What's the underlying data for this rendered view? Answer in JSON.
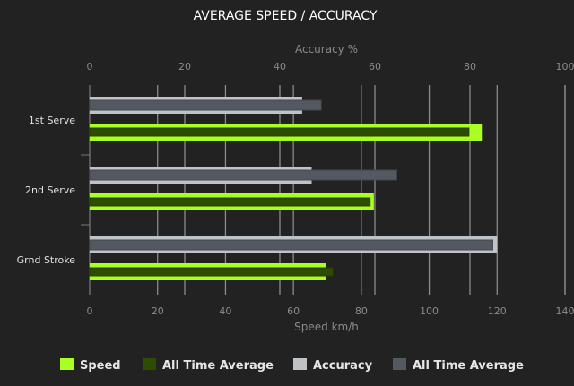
{
  "chart_data": {
    "type": "bar",
    "orientation": "horizontal",
    "title": "AVERAGE SPEED / ACCURACY",
    "categories": [
      "1st Serve",
      "2nd Serve",
      "Grnd Stroke"
    ],
    "top_axis": {
      "label": "Accuracy %",
      "range": [
        0,
        100
      ],
      "ticks": [
        0,
        20,
        40,
        60,
        80,
        100
      ]
    },
    "bottom_axis": {
      "label": "Speed km/h",
      "range": [
        0,
        140
      ],
      "ticks": [
        0,
        20,
        40,
        60,
        80,
        100,
        120,
        140
      ]
    },
    "grid": true,
    "legend_position": "bottom",
    "series": [
      {
        "name": "Speed",
        "axis": "bottom",
        "color": "#aaff22",
        "values": [
          115.5,
          83.7,
          69.6
        ]
      },
      {
        "name": "All Time Average",
        "axis": "bottom",
        "color": "#2e4d00",
        "values": [
          111.7,
          82.6,
          71.6
        ]
      },
      {
        "name": "Accuracy",
        "axis": "top",
        "color": "#c0c3c6",
        "values": [
          44.7,
          46.7,
          85.7
        ]
      },
      {
        "name": "All Time Average",
        "axis": "top",
        "color": "#545860",
        "values": [
          48.7,
          64.6,
          84.8
        ]
      }
    ]
  }
}
